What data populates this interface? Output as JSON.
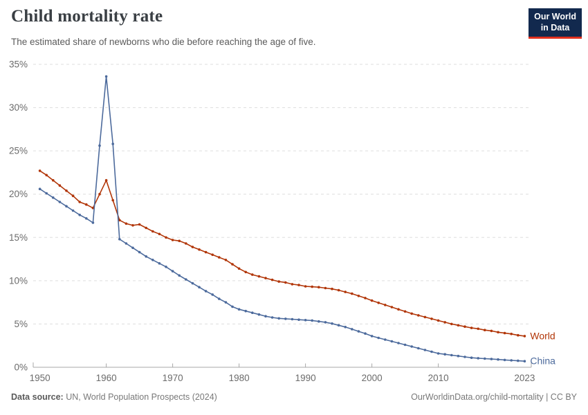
{
  "header": {
    "title": "Child mortality rate",
    "subtitle": "The estimated share of newborns who die before reaching the age of five.",
    "logo": {
      "line1": "Our World",
      "line2": "in Data"
    }
  },
  "footer": {
    "source_label": "Data source:",
    "source_text": " UN, World Population Prospects (2024)",
    "url_text": "OurWorldinData.org/child-mortality",
    "license_text": " | CC BY"
  },
  "colors": {
    "world_series": "#B13507",
    "china_series": "#4C6A9C",
    "gridline": "#DDDDDD",
    "axis": "#A7A7A7",
    "tick_label": "#6B6B6B",
    "title_text": "#3A3F44",
    "logo_bg": "#12294E",
    "logo_bar": "#E0301E"
  },
  "chart_data": {
    "type": "line",
    "title": "Child mortality rate",
    "subtitle": "The estimated share of newborns who die before reaching the age of five.",
    "xlabel": "",
    "ylabel": "",
    "unit": "%",
    "grid": "dashed horizontal",
    "legend_position": "line-end-labels-right",
    "xlim": [
      1949,
      2024
    ],
    "ylim": [
      0,
      35
    ],
    "x_ticks": [
      1950,
      1960,
      1970,
      1980,
      1990,
      2000,
      2010,
      2023
    ],
    "x_tick_marks": [
      1960,
      1970,
      1980,
      1990,
      2000,
      2010
    ],
    "y_ticks": [
      0,
      5,
      10,
      15,
      20,
      25,
      30,
      35
    ],
    "years": [
      1950,
      1951,
      1952,
      1953,
      1954,
      1955,
      1956,
      1957,
      1958,
      1959,
      1960,
      1961,
      1962,
      1963,
      1964,
      1965,
      1966,
      1967,
      1968,
      1969,
      1970,
      1971,
      1972,
      1973,
      1974,
      1975,
      1976,
      1977,
      1978,
      1979,
      1980,
      1981,
      1982,
      1983,
      1984,
      1985,
      1986,
      1987,
      1988,
      1989,
      1990,
      1991,
      1992,
      1993,
      1994,
      1995,
      1996,
      1997,
      1998,
      1999,
      2000,
      2001,
      2002,
      2003,
      2004,
      2005,
      2006,
      2007,
      2008,
      2009,
      2010,
      2011,
      2012,
      2013,
      2014,
      2015,
      2016,
      2017,
      2018,
      2019,
      2020,
      2021,
      2022,
      2023
    ],
    "series": [
      {
        "name": "World",
        "color": "#B13507",
        "values": [
          22.7,
          22.2,
          21.6,
          21.0,
          20.4,
          19.8,
          19.1,
          18.8,
          18.4,
          20.0,
          21.6,
          19.3,
          17.0,
          16.6,
          16.4,
          16.5,
          16.1,
          15.7,
          15.4,
          15.0,
          14.7,
          14.6,
          14.3,
          13.9,
          13.6,
          13.3,
          13.0,
          12.7,
          12.4,
          11.9,
          11.4,
          11.0,
          10.7,
          10.5,
          10.3,
          10.1,
          9.9,
          9.8,
          9.6,
          9.5,
          9.35,
          9.3,
          9.25,
          9.15,
          9.05,
          8.9,
          8.7,
          8.5,
          8.25,
          8.0,
          7.7,
          7.45,
          7.2,
          6.95,
          6.7,
          6.45,
          6.2,
          6.0,
          5.8,
          5.6,
          5.4,
          5.2,
          5.0,
          4.85,
          4.7,
          4.55,
          4.45,
          4.3,
          4.2,
          4.05,
          3.95,
          3.85,
          3.7,
          3.6
        ]
      },
      {
        "name": "China",
        "color": "#4C6A9C",
        "values": [
          20.6,
          20.1,
          19.6,
          19.1,
          18.6,
          18.1,
          17.6,
          17.2,
          16.7,
          25.6,
          33.6,
          25.8,
          14.8,
          14.3,
          13.8,
          13.3,
          12.8,
          12.4,
          12.0,
          11.6,
          11.1,
          10.6,
          10.15,
          9.7,
          9.25,
          8.8,
          8.4,
          7.9,
          7.5,
          7.0,
          6.7,
          6.5,
          6.3,
          6.1,
          5.9,
          5.75,
          5.65,
          5.6,
          5.55,
          5.5,
          5.45,
          5.4,
          5.3,
          5.2,
          5.05,
          4.85,
          4.65,
          4.4,
          4.15,
          3.9,
          3.6,
          3.4,
          3.2,
          3.0,
          2.8,
          2.6,
          2.4,
          2.2,
          2.0,
          1.8,
          1.6,
          1.5,
          1.4,
          1.3,
          1.2,
          1.1,
          1.05,
          1.0,
          0.95,
          0.9,
          0.85,
          0.8,
          0.75,
          0.7
        ]
      }
    ]
  }
}
